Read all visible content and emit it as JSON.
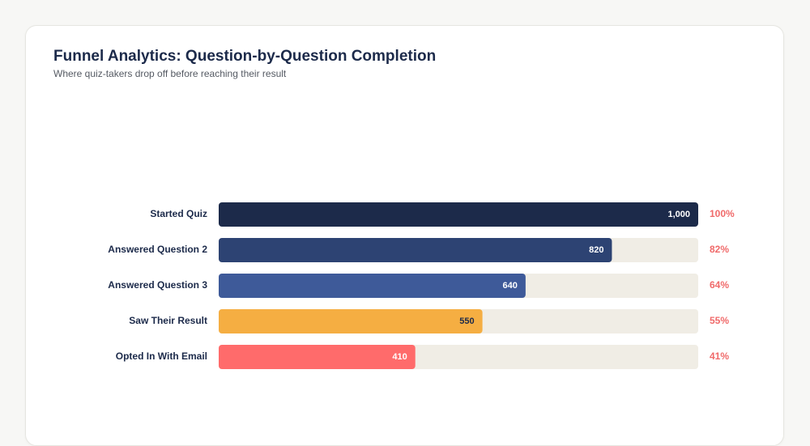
{
  "header": {
    "title": "Funnel Analytics: Question-by-Question Completion",
    "subtitle": "Where quiz-takers drop off before reaching their result"
  },
  "colors": {
    "track": "#f0ede5",
    "percent_text": "#f06a6a",
    "label_text": "#1c2a4a"
  },
  "chart_data": {
    "type": "bar",
    "orientation": "horizontal",
    "title": "Funnel Analytics: Question-by-Question Completion",
    "subtitle": "Where quiz-takers drop off before reaching their result",
    "categories": [
      "Started Quiz",
      "Answered Question 2",
      "Answered Question 3",
      "Saw Their Result",
      "Opted In With Email"
    ],
    "values": [
      1000,
      820,
      640,
      550,
      410
    ],
    "value_labels": [
      "1,000",
      "820",
      "640",
      "550",
      "410"
    ],
    "percent_labels": [
      "100%",
      "82%",
      "64%",
      "55%",
      "41%"
    ],
    "bar_colors": [
      "#1c2a4a",
      "#2d4373",
      "#3e5a99",
      "#f5ae42",
      "#ff6b6b"
    ],
    "value_label_colors": [
      "#ffffff",
      "#ffffff",
      "#ffffff",
      "#1c2a4a",
      "#ffffff"
    ],
    "xlim": [
      0,
      1000
    ],
    "grid": false,
    "legend": "none"
  }
}
